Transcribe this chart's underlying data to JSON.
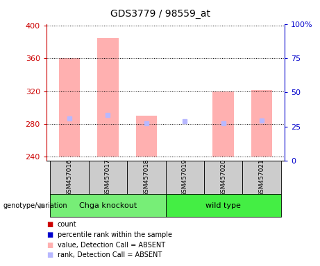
{
  "title": "GDS3779 / 98559_at",
  "samples": [
    "GSM457016",
    "GSM457017",
    "GSM457018",
    "GSM457019",
    "GSM457020",
    "GSM457021"
  ],
  "ylim_left": [
    235,
    402
  ],
  "ylim_right": [
    0,
    100
  ],
  "yticks_left": [
    240,
    280,
    320,
    360,
    400
  ],
  "yticks_right": [
    0,
    25,
    50,
    75,
    100
  ],
  "bar_color_absent": "#ffb0b0",
  "rank_color_absent": "#b8b8ff",
  "bar_bottom": 240,
  "bar_tops": [
    360,
    385,
    290,
    240.5,
    320,
    321
  ],
  "rank_values": [
    287,
    291,
    281,
    283,
    281,
    284
  ],
  "left_color": "#cc0000",
  "right_color": "#0000cc",
  "label_area_color": "#cccccc",
  "group_spans": [
    {
      "label": "Chga knockout",
      "start": 0,
      "end": 3,
      "color": "#77ee77"
    },
    {
      "label": "wild type",
      "start": 3,
      "end": 6,
      "color": "#44ee44"
    }
  ],
  "genotype_label": "genotype/variation",
  "legend_items": [
    {
      "color": "#cc0000",
      "label": "count"
    },
    {
      "color": "#0000cc",
      "label": "percentile rank within the sample"
    },
    {
      "color": "#ffb0b0",
      "label": "value, Detection Call = ABSENT"
    },
    {
      "color": "#b8b8ff",
      "label": "rank, Detection Call = ABSENT"
    }
  ]
}
